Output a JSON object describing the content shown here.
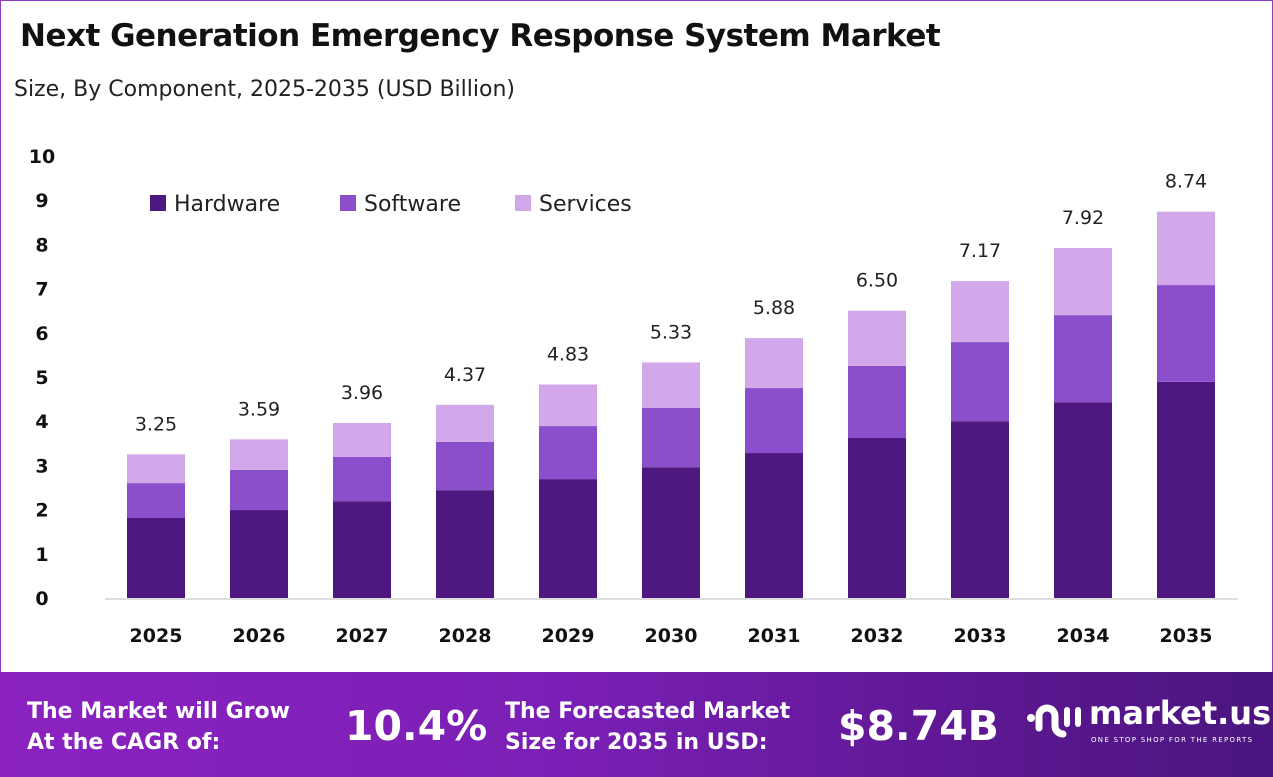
{
  "title": "Next Generation Emergency Response System Market",
  "subtitle": "Size, By Component, 2025-2035 (USD Billion)",
  "chart_data": {
    "type": "bar",
    "stacked": true,
    "categories": [
      "2025",
      "2026",
      "2027",
      "2028",
      "2029",
      "2030",
      "2031",
      "2032",
      "2033",
      "2034",
      "2035"
    ],
    "series": [
      {
        "name": "Hardware",
        "color": "#4f1780",
        "values": [
          1.81,
          1.99,
          2.19,
          2.44,
          2.69,
          2.96,
          3.28,
          3.62,
          4.0,
          4.43,
          4.89
        ]
      },
      {
        "name": "Software",
        "color": "#8b4fcb",
        "values": [
          0.79,
          0.91,
          1.0,
          1.09,
          1.2,
          1.34,
          1.47,
          1.63,
          1.79,
          1.97,
          2.19
        ]
      },
      {
        "name": "Services",
        "color": "#d3a8ea",
        "values": [
          0.65,
          0.69,
          0.77,
          0.84,
          0.94,
          1.03,
          1.13,
          1.25,
          1.38,
          1.52,
          1.66
        ]
      }
    ],
    "totals": [
      "3.25",
      "3.59",
      "3.96",
      "4.37",
      "4.83",
      "5.33",
      "5.88",
      "6.50",
      "7.17",
      "7.92",
      "8.74"
    ],
    "ylim": [
      0,
      10
    ],
    "yticks": [
      "0",
      "1",
      "2",
      "3",
      "4",
      "5",
      "6",
      "7",
      "8",
      "9",
      "10"
    ],
    "grid": false,
    "legend_position": "top-left"
  },
  "footer": {
    "cagr_label_line1": "The Market will Grow",
    "cagr_label_line2": "At the CAGR of:",
    "cagr_value": "10.4%",
    "forecast_label_line1": "The Forecasted Market",
    "forecast_label_line2": "Size for 2035 in USD:",
    "forecast_value": "$8.74B",
    "logo_name": "market.us",
    "logo_tagline": "ONE STOP SHOP FOR THE REPORTS"
  }
}
